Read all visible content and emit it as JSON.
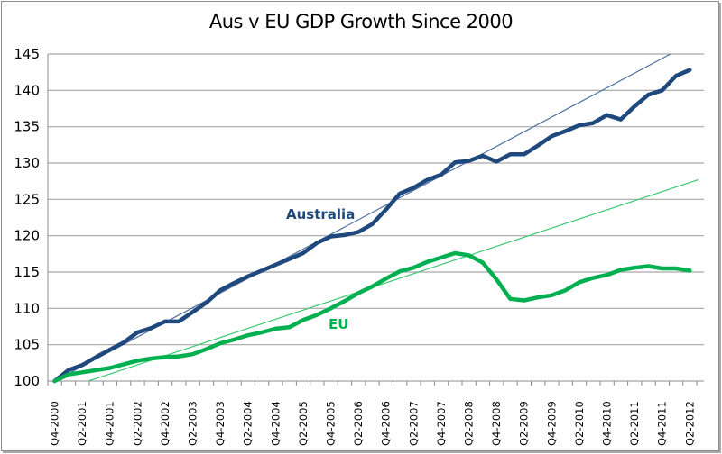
{
  "chart_data": {
    "type": "line",
    "title": "Aus v EU GDP Growth Since 2000",
    "xlabel": "",
    "ylabel": "",
    "ylim": [
      100,
      145
    ],
    "yticks": [
      100,
      105,
      110,
      115,
      120,
      125,
      130,
      135,
      140,
      145
    ],
    "grid": true,
    "legend": "inline-labels",
    "categories": [
      "Q4-2000",
      "Q1-2001",
      "Q2-2001",
      "Q3-2001",
      "Q4-2001",
      "Q1-2002",
      "Q2-2002",
      "Q3-2002",
      "Q4-2002",
      "Q1-2003",
      "Q2-2003",
      "Q3-2003",
      "Q4-2003",
      "Q1-2004",
      "Q2-2004",
      "Q3-2004",
      "Q4-2004",
      "Q1-2005",
      "Q2-2005",
      "Q3-2005",
      "Q4-2005",
      "Q1-2006",
      "Q2-2006",
      "Q3-2006",
      "Q4-2006",
      "Q1-2007",
      "Q2-2007",
      "Q3-2007",
      "Q4-2007",
      "Q1-2008",
      "Q2-2008",
      "Q3-2008",
      "Q4-2008",
      "Q1-2009",
      "Q2-2009",
      "Q3-2009",
      "Q4-2009",
      "Q1-2010",
      "Q2-2010",
      "Q3-2010",
      "Q4-2010",
      "Q1-2011",
      "Q2-2011",
      "Q3-2011",
      "Q4-2011",
      "Q1-2012",
      "Q2-2012"
    ],
    "tick_labels": [
      "Q4-2000",
      "Q2-2001",
      "Q4-2001",
      "Q2-2002",
      "Q4-2002",
      "Q2-2003",
      "Q4-2003",
      "Q2-2004",
      "Q4-2004",
      "Q2-2005",
      "Q4-2005",
      "Q2-2006",
      "Q4-2006",
      "Q2-2007",
      "Q4-2007",
      "Q2-2008",
      "Q4-2008",
      "Q2-2009",
      "Q4-2009",
      "Q2-2010",
      "Q4-2010",
      "Q2-2011",
      "Q4-2011",
      "Q2-2012"
    ],
    "series": [
      {
        "name": "Australia",
        "color": "#1f497d",
        "values": [
          100,
          101.5,
          102.2,
          103.3,
          104.3,
          105.3,
          106.7,
          107.3,
          108.2,
          108.2,
          109.5,
          110.8,
          112.5,
          113.5,
          114.4,
          115.2,
          116.0,
          116.8,
          117.6,
          119.0,
          119.9,
          120.1,
          120.5,
          121.6,
          123.6,
          125.8,
          126.6,
          127.7,
          128.4,
          130.1,
          130.3,
          131.0,
          130.2,
          131.2,
          131.2,
          132.4,
          133.7,
          134.4,
          135.2,
          135.5,
          136.6,
          136.0,
          137.8,
          139.4,
          140.0,
          142.0,
          142.8
        ]
      },
      {
        "name": "EU",
        "color": "#00b050",
        "values": [
          100,
          100.9,
          101.2,
          101.5,
          101.8,
          102.3,
          102.8,
          103.1,
          103.3,
          103.4,
          103.7,
          104.4,
          105.2,
          105.7,
          106.3,
          106.7,
          107.2,
          107.4,
          108.4,
          109.1,
          110.0,
          111.0,
          112.1,
          113.0,
          114.1,
          115.1,
          115.6,
          116.4,
          117.0,
          117.6,
          117.3,
          116.3,
          114.0,
          111.3,
          111.1,
          111.5,
          111.8,
          112.5,
          113.6,
          114.2,
          114.6,
          115.3,
          115.6,
          115.8,
          115.5,
          115.5,
          115.2
        ]
      }
    ],
    "trendlines": [
      {
        "name": "Australia trend",
        "color": "#4f6fa0",
        "from": {
          "index": 0,
          "value": 100
        },
        "to": {
          "index": 44.6,
          "value": 145
        }
      },
      {
        "name": "EU trend",
        "color": "#3cc873",
        "from": {
          "index": 2.45,
          "value": 100
        },
        "to": {
          "index": 46.6,
          "value": 127.7
        }
      }
    ],
    "annotations": [
      {
        "text": "Australia",
        "color": "#1f497d"
      },
      {
        "text": "EU",
        "color": "#00b050"
      }
    ]
  }
}
